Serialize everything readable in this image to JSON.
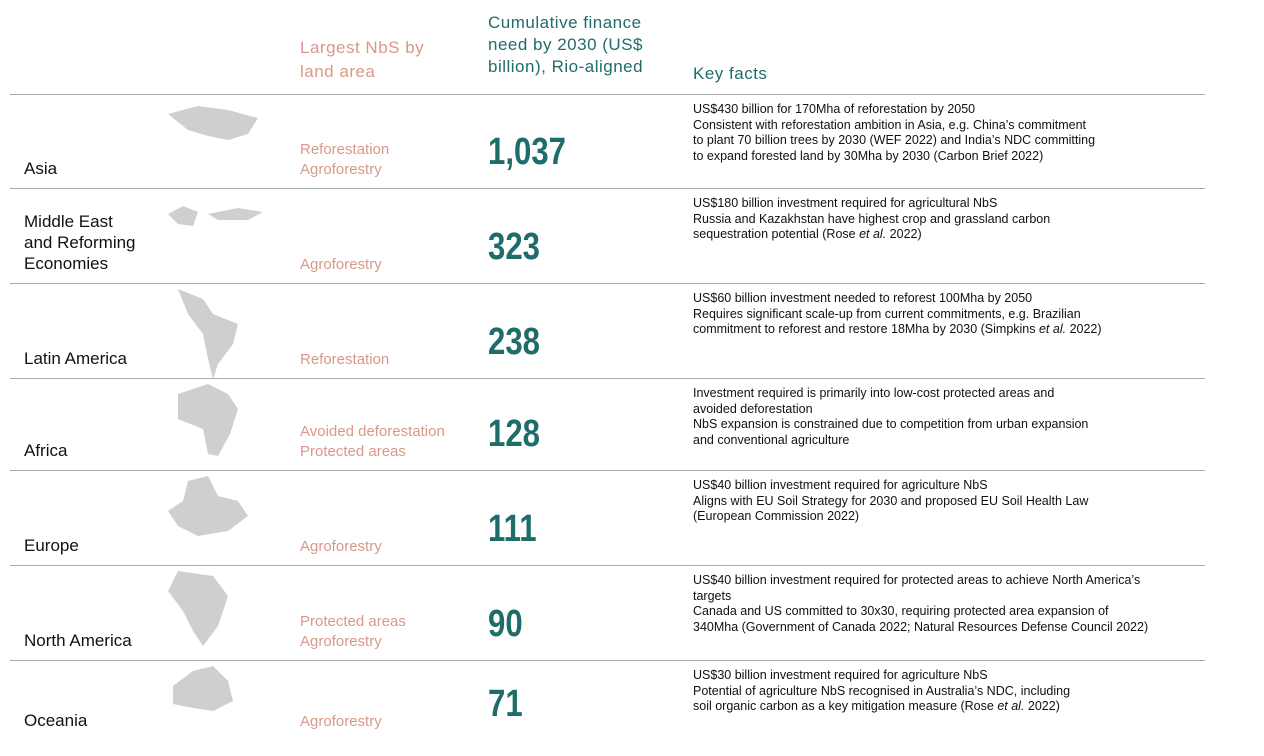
{
  "header": {
    "nbs": "Largest NbS by land area",
    "finance": "Cumulative finance need by 2030 (US$ billion), Rio-aligned",
    "facts": "Key facts"
  },
  "rows": [
    {
      "region": [
        "Asia"
      ],
      "nbs": [
        "Reforestation",
        "Agroforestry"
      ],
      "finance": "1,037",
      "facts": [
        [
          "US$430 billion for 170Mha of reforestation by 2050"
        ],
        [
          "Consistent with reforestation ambition in Asia, e.g. China’s commitment"
        ],
        [
          "to plant 70 billion trees by 2030 (WEF 2022) and India’s NDC committing"
        ],
        [
          "to expand forested land by 30Mha by 2030 (Carbon Brief 2022)"
        ]
      ]
    },
    {
      "region": [
        "Middle East",
        "and Reforming",
        "Economies"
      ],
      "nbs": [
        "Agroforestry"
      ],
      "finance": 323,
      "facts": [
        [
          "US$180 billion investment required for agricultural NbS"
        ],
        [
          "Russia and Kazakhstan have highest crop and grassland carbon"
        ],
        [
          "sequestration potential (Rose ",
          {
            "em": "et al."
          },
          " 2022)"
        ]
      ]
    },
    {
      "region": [
        "Latin America"
      ],
      "nbs": [
        "Reforestation"
      ],
      "finance": 238,
      "facts": [
        [
          "US$60 billion investment needed to reforest 100Mha by 2050"
        ],
        [
          "Requires significant scale-up from current commitments, e.g. Brazilian"
        ],
        [
          "commitment to reforest and restore  18Mha by 2030 (Simpkins ",
          {
            "em": "et al."
          },
          " 2022)"
        ]
      ]
    },
    {
      "region": [
        "Africa"
      ],
      "nbs": [
        "Avoided deforestation",
        "Protected areas"
      ],
      "finance": 128,
      "facts": [
        [
          "Investment required is primarily into low-cost protected areas and"
        ],
        [
          "avoided deforestation"
        ],
        [
          "NbS expansion is constrained due to competition from urban expansion"
        ],
        [
          "and conventional agriculture"
        ]
      ]
    },
    {
      "region": [
        "Europe"
      ],
      "nbs": [
        "Agroforestry"
      ],
      "finance": 111,
      "facts": [
        [
          "US$40 billion investment required for agriculture NbS"
        ],
        [
          "Aligns with EU Soil Strategy for 2030 and proposed EU Soil Health Law"
        ],
        [
          "(European Commission 2022)"
        ]
      ]
    },
    {
      "region": [
        "North America"
      ],
      "nbs": [
        "Protected areas",
        "Agroforestry"
      ],
      "finance": 90,
      "facts": [
        [
          "US$40 billion investment required for protected areas to achieve North America’s"
        ],
        [
          "targets"
        ],
        [
          "Canada and US committed to 30x30, requiring protected area expansion of"
        ],
        [
          "340Mha (Government of Canada 2022; Natural Resources Defense Council 2022)"
        ]
      ]
    },
    {
      "region": [
        "Oceania"
      ],
      "nbs": [
        "Agroforestry"
      ],
      "finance": 71,
      "facts": [
        [
          "US$30 billion investment required for agriculture NbS"
        ],
        [
          "Potential of agriculture NbS recognised in Australia’s NDC, including"
        ],
        [
          "soil organic carbon as a key mitigation measure (Rose ",
          {
            "em": "et al."
          },
          " 2022)"
        ]
      ]
    }
  ]
}
